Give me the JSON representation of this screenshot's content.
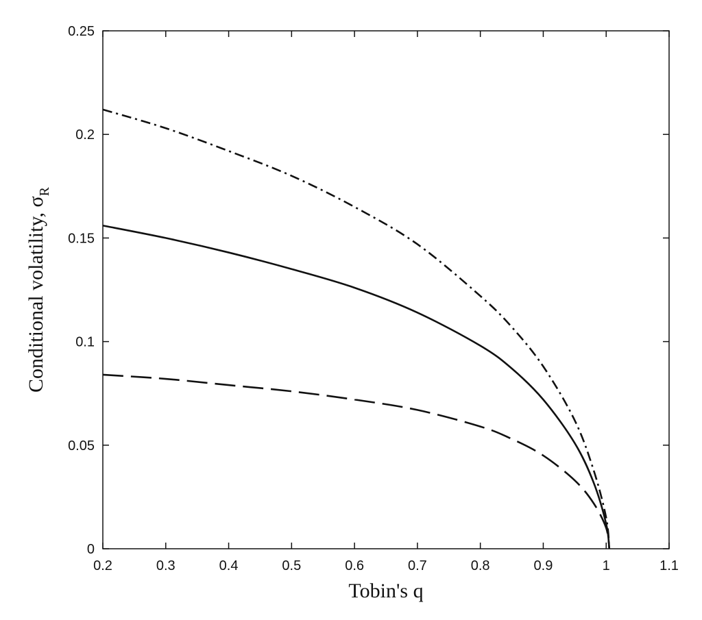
{
  "chart_data": {
    "type": "line",
    "title": "",
    "xlabel": "Tobin's q",
    "ylabel": "Conditional volatility, σ",
    "ylabel_subscript": "R",
    "xlim": [
      0.2,
      1.1
    ],
    "ylim": [
      0,
      0.25
    ],
    "xticks": [
      "0.2",
      "0.3",
      "0.4",
      "0.5",
      "0.6",
      "0.7",
      "0.8",
      "0.9",
      "1",
      "1.1"
    ],
    "yticks": [
      "0",
      "0.05",
      "0.1",
      "0.15",
      "0.2",
      "0.25"
    ],
    "grid": false,
    "legend": "none",
    "series": [
      {
        "style": "dashdot",
        "x": [
          0.2,
          0.3,
          0.4,
          0.5,
          0.6,
          0.7,
          0.8,
          0.85,
          0.9,
          0.95,
          0.98,
          1.0,
          1.005
        ],
        "y": [
          0.212,
          0.203,
          0.192,
          0.18,
          0.165,
          0.147,
          0.122,
          0.107,
          0.088,
          0.062,
          0.038,
          0.015,
          0.0
        ]
      },
      {
        "style": "solid",
        "x": [
          0.2,
          0.3,
          0.4,
          0.5,
          0.6,
          0.7,
          0.8,
          0.85,
          0.9,
          0.95,
          0.98,
          1.0,
          1.005
        ],
        "y": [
          0.156,
          0.15,
          0.143,
          0.135,
          0.126,
          0.114,
          0.098,
          0.087,
          0.072,
          0.051,
          0.032,
          0.012,
          0.0
        ]
      },
      {
        "style": "dashed",
        "x": [
          0.2,
          0.3,
          0.4,
          0.5,
          0.6,
          0.7,
          0.8,
          0.85,
          0.9,
          0.95,
          0.98,
          1.0,
          1.005
        ],
        "y": [
          0.084,
          0.082,
          0.079,
          0.076,
          0.072,
          0.067,
          0.059,
          0.053,
          0.045,
          0.033,
          0.022,
          0.01,
          0.0
        ]
      }
    ]
  }
}
